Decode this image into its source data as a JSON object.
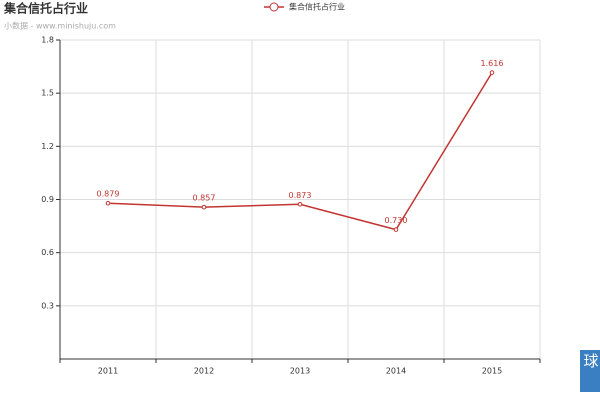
{
  "chart_data": {
    "type": "line",
    "title": "集合信托占行业",
    "subtitle": "小数据 - www.minishuju.com",
    "categories": [
      "2011",
      "2012",
      "2013",
      "2014",
      "2015"
    ],
    "series": [
      {
        "name": "集合信托占行业",
        "color": "#c23531",
        "values": [
          0.879,
          0.857,
          0.873,
          0.73,
          1.616
        ],
        "value_labels": [
          "0.879",
          "0.857",
          "0.873",
          "0.730",
          "1.616"
        ]
      }
    ],
    "ylim": [
      0,
      1.8
    ],
    "yticks": [
      0.3,
      0.6,
      0.9,
      1.2,
      1.5,
      1.8
    ],
    "grid": true,
    "legend": "top",
    "watermark": "雪球"
  }
}
